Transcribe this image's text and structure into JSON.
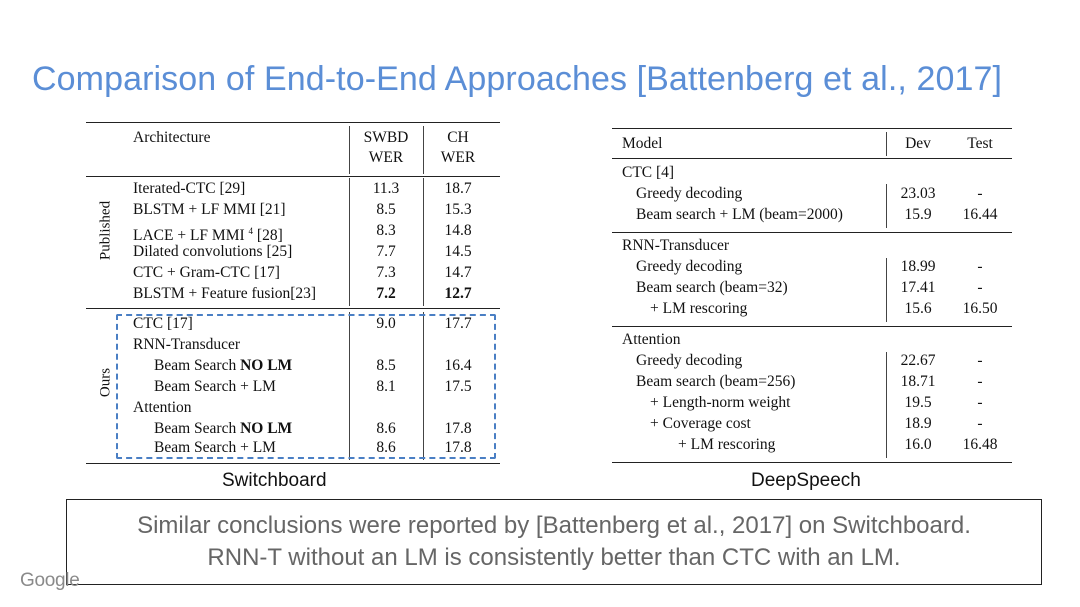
{
  "slide": {
    "title": "Comparison of End-to-End Approaches [Battenberg et al., 2017]",
    "logo": "Google"
  },
  "switchboard": {
    "caption": "Switchboard",
    "header": {
      "architecture": "Architecture",
      "swbd_1": "SWBD",
      "swbd_2": "WER",
      "ch_1": "CH",
      "ch_2": "WER"
    },
    "group_labels": {
      "published": "Published",
      "ours": "Ours"
    },
    "published_rows": [
      {
        "name": "Iterated-CTC [29]",
        "swbd": "11.3",
        "ch": "18.7"
      },
      {
        "name": "BLSTM + LF MMI [21]",
        "swbd": "8.5",
        "ch": "15.3"
      },
      {
        "name": "LACE + LF MMI",
        "sup": "4",
        "ref": " [28]",
        "swbd": "8.3",
        "ch": "14.8"
      },
      {
        "name": "Dilated convolutions [25]",
        "swbd": "7.7",
        "ch": "14.5"
      },
      {
        "name": "CTC + Gram-CTC [17]",
        "swbd": "7.3",
        "ch": "14.7"
      },
      {
        "name": "BLSTM + Feature fusion[23]",
        "swbd": "7.2",
        "ch": "12.7"
      }
    ],
    "ours_rows": [
      {
        "name": "CTC [17]",
        "swbd": "9.0",
        "ch": "17.7"
      },
      {
        "name": "RNN-Transducer",
        "swbd": "",
        "ch": ""
      },
      {
        "name": "Beam Search ",
        "bold": "NO LM",
        "swbd": "8.5",
        "ch": "16.4"
      },
      {
        "name": "Beam Search + LM",
        "swbd": "8.1",
        "ch": "17.5"
      },
      {
        "name": "Attention",
        "swbd": "",
        "ch": ""
      },
      {
        "name": "Beam Search ",
        "bold": "NO LM",
        "swbd": "8.6",
        "ch": "17.8"
      },
      {
        "name": "Beam Search + LM",
        "swbd": "8.6",
        "ch": "17.8"
      }
    ]
  },
  "deepspeech": {
    "caption": "DeepSpeech",
    "header": {
      "model": "Model",
      "dev": "Dev",
      "test": "Test"
    },
    "sections": [
      {
        "title": "CTC [4]",
        "rows": [
          {
            "name": "Greedy decoding",
            "dev": "23.03",
            "test": "-"
          },
          {
            "name": "Beam search + LM (beam=2000)",
            "dev": "15.9",
            "test": "16.44"
          }
        ]
      },
      {
        "title": "RNN-Transducer",
        "rows": [
          {
            "name": "Greedy decoding",
            "dev": "18.99",
            "test": "-"
          },
          {
            "name": "Beam search (beam=32)",
            "dev": "17.41",
            "test": "-"
          },
          {
            "name": "+ LM rescoring",
            "dev": "15.6",
            "test": "16.50"
          }
        ]
      },
      {
        "title": "Attention",
        "rows": [
          {
            "name": "Greedy decoding",
            "dev": "22.67",
            "test": "-"
          },
          {
            "name": "Beam search (beam=256)",
            "dev": "18.71",
            "test": "-"
          },
          {
            "name": "+ Length-norm weight",
            "dev": "19.5",
            "test": "-"
          },
          {
            "name": "+ Coverage cost",
            "dev": "18.9",
            "test": "-"
          },
          {
            "name": "+ LM rescoring",
            "dev": "16.0",
            "test": "16.48"
          }
        ]
      }
    ]
  },
  "conclusion": {
    "line1": "Similar conclusions were reported by [Battenberg et al., 2017] on Switchboard.",
    "line2": "RNN-T without an LM is consistently better than CTC with an LM."
  }
}
